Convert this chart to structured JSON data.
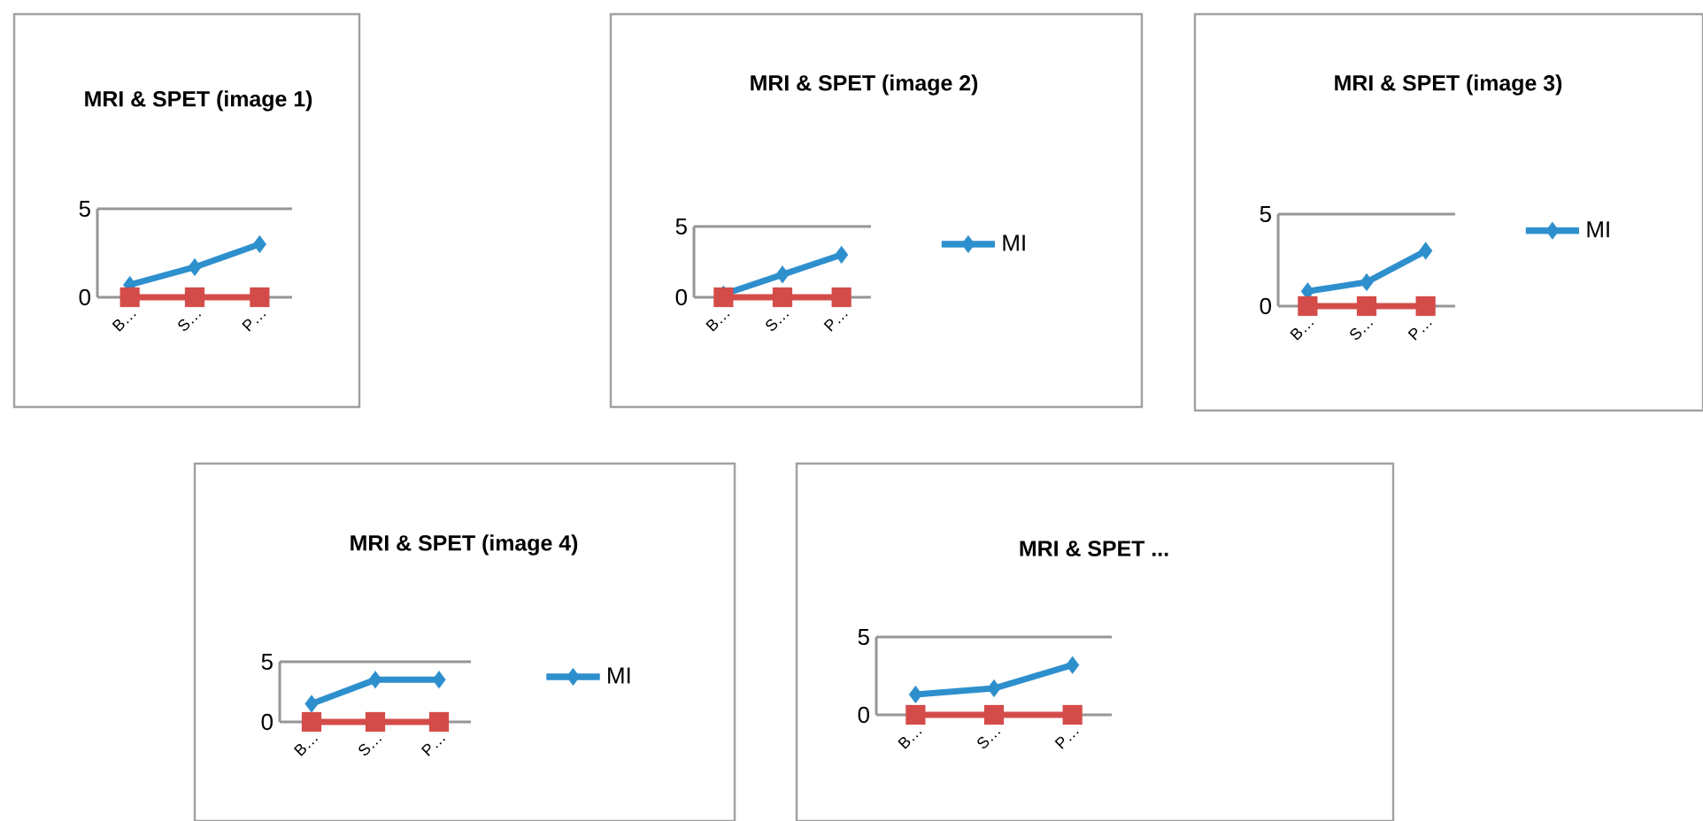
{
  "chart_data": [
    {
      "type": "line",
      "title": "MRI & SPET (image  1)",
      "categories": [
        "B…",
        "S…",
        "P…"
      ],
      "ylim": [
        0,
        5
      ],
      "yticks": [
        0,
        5
      ],
      "legend": false,
      "line_style": "solid",
      "series": [
        {
          "color": "#2e8fcd",
          "marker": "diamond",
          "values": [
            0.7,
            1.7,
            3.0
          ]
        },
        {
          "color": "#d44c4a",
          "marker": "square",
          "values": [
            0,
            0,
            0
          ]
        }
      ]
    },
    {
      "type": "line",
      "title": "MRI & SPET (image  2)",
      "categories": [
        "B…",
        "S…",
        "P…"
      ],
      "ylim": [
        0,
        5
      ],
      "yticks": [
        0,
        5
      ],
      "legend": "right",
      "line_style": "solid",
      "series": [
        {
          "name": "MI",
          "color": "#2e8fcd",
          "marker": "diamond",
          "values": [
            0.2,
            1.6,
            3.0
          ]
        },
        {
          "color": "#d44c4a",
          "marker": "square",
          "values": [
            0,
            0,
            0
          ]
        }
      ]
    },
    {
      "type": "line",
      "title": "MRI & SPET (image 3)",
      "categories": [
        "B…",
        "S…",
        "P…"
      ],
      "ylim": [
        0,
        5
      ],
      "yticks": [
        0,
        5
      ],
      "legend": "top right",
      "line_style": "solid",
      "series": [
        {
          "name": "MI",
          "color": "#2e8fcd",
          "marker": "diamond",
          "values": [
            0.8,
            1.3,
            3.0
          ]
        },
        {
          "color": "#d44c4a",
          "marker": "square",
          "values": [
            0,
            0,
            0
          ]
        }
      ]
    },
    {
      "type": "line",
      "title": "MRI & SPET (image 4)",
      "categories": [
        "B…",
        "S…",
        "P…"
      ],
      "ylim": [
        0,
        5
      ],
      "yticks": [
        0,
        5
      ],
      "legend": "right",
      "line_style": "solid",
      "series": [
        {
          "name": "MI",
          "color": "#2e8fcd",
          "marker": "diamond",
          "values": [
            1.5,
            3.5,
            3.5
          ]
        },
        {
          "color": "#d44c4a",
          "marker": "square",
          "values": [
            0,
            0,
            0
          ]
        }
      ]
    },
    {
      "type": "line",
      "title": "MRI & SPET ...",
      "categories": [
        "B…",
        "S…",
        "P…"
      ],
      "ylim": [
        0,
        5
      ],
      "yticks": [
        0,
        5
      ],
      "legend": false,
      "line_style": "solid",
      "series": [
        {
          "color": "#2e8fcd",
          "marker": "diamond",
          "values": [
            1.3,
            1.7,
            3.2
          ]
        },
        {
          "color": "#d44c4a",
          "marker": "square",
          "values": [
            0,
            0,
            0
          ]
        }
      ]
    }
  ]
}
